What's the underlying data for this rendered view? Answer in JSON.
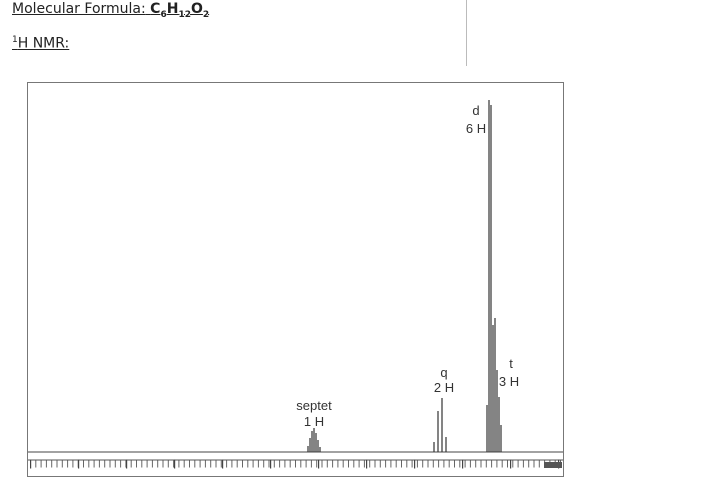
{
  "header": {
    "formula_label": "Molecular Formula:",
    "formula": [
      {
        "element": "C",
        "count": "6"
      },
      {
        "element": "H",
        "count": "12"
      },
      {
        "element": "O",
        "count": "2"
      }
    ],
    "nmr_isotope": "1",
    "nmr_label": "H NMR:"
  },
  "spectrum": {
    "peaks": [
      {
        "multiplicity": "d",
        "integration": "6 H"
      },
      {
        "multiplicity": "q",
        "integration": "2 H"
      },
      {
        "multiplicity": "t",
        "integration": "3 H"
      },
      {
        "multiplicity": "septet",
        "integration": "1 H"
      }
    ]
  }
}
